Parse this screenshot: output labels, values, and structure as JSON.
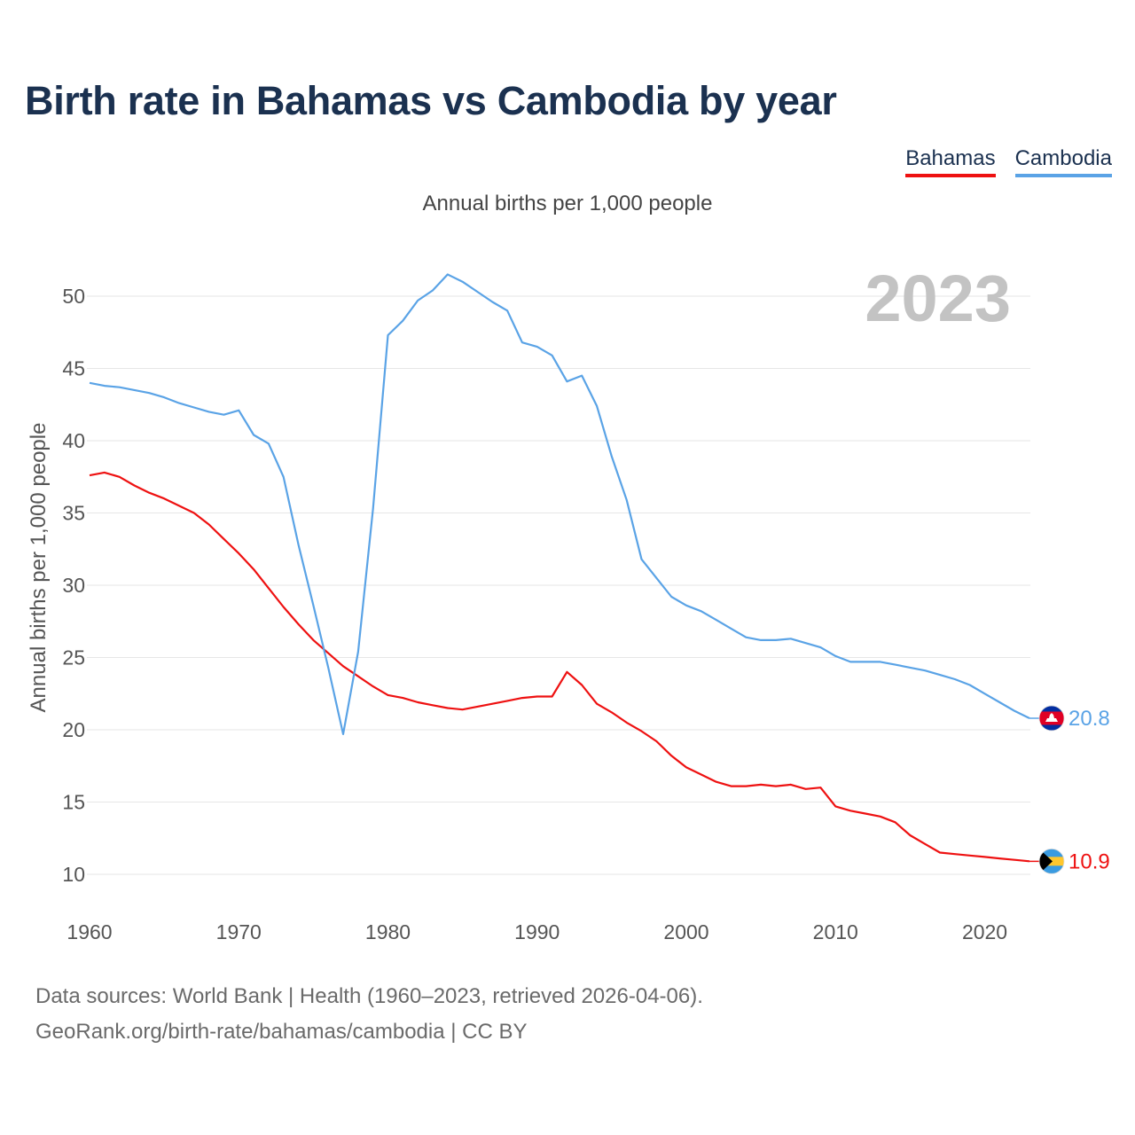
{
  "title": "Birth rate in Bahamas vs Cambodia by year",
  "subtitle": "Annual births per 1,000 people",
  "legend": {
    "bahamas": "Bahamas",
    "cambodia": "Cambodia"
  },
  "year_overlay": "2023",
  "footer": {
    "line1": "Data sources: World Bank | Health (1960–2023, retrieved 2026-04-06).",
    "line2": "GeoRank.org/birth-rate/bahamas/cambodia | CC BY"
  },
  "colors": {
    "bahamas": "#ee1111",
    "cambodia": "#5aa3e6",
    "title": "#1b3150"
  },
  "chart_data": {
    "type": "line",
    "title": "Birth rate in Bahamas vs Cambodia by year",
    "xlabel": "",
    "ylabel": "Annual births per 1,000 people",
    "xlim": [
      1960,
      2023
    ],
    "ylim": [
      10,
      52
    ],
    "x_ticks": [
      1960,
      1970,
      1980,
      1990,
      2000,
      2010,
      2020
    ],
    "y_ticks": [
      10,
      15,
      20,
      25,
      30,
      35,
      40,
      45,
      50
    ],
    "grid": true,
    "legend_position": "top-right",
    "x": [
      1960,
      1961,
      1962,
      1963,
      1964,
      1965,
      1966,
      1967,
      1968,
      1969,
      1970,
      1971,
      1972,
      1973,
      1974,
      1975,
      1976,
      1977,
      1978,
      1979,
      1980,
      1981,
      1982,
      1983,
      1984,
      1985,
      1986,
      1987,
      1988,
      1989,
      1990,
      1991,
      1992,
      1993,
      1994,
      1995,
      1996,
      1997,
      1998,
      1999,
      2000,
      2001,
      2002,
      2003,
      2004,
      2005,
      2006,
      2007,
      2008,
      2009,
      2010,
      2011,
      2012,
      2013,
      2014,
      2015,
      2016,
      2017,
      2018,
      2019,
      2020,
      2021,
      2022,
      2023
    ],
    "series": [
      {
        "name": "Bahamas",
        "end_label": "10.9",
        "values": [
          37.6,
          37.8,
          37.5,
          36.9,
          36.4,
          36.0,
          35.5,
          35.0,
          34.2,
          33.2,
          32.2,
          31.1,
          29.8,
          28.5,
          27.3,
          26.2,
          25.3,
          24.4,
          23.7,
          23.0,
          22.4,
          22.2,
          21.9,
          21.7,
          21.5,
          21.4,
          21.6,
          21.8,
          22.0,
          22.2,
          22.3,
          22.3,
          24.0,
          23.1,
          21.8,
          21.2,
          20.5,
          19.9,
          19.2,
          18.2,
          17.4,
          16.9,
          16.4,
          16.1,
          16.1,
          16.2,
          16.1,
          16.2,
          15.9,
          16.0,
          14.7,
          14.4,
          14.2,
          14.0,
          13.6,
          12.7,
          12.1,
          11.5,
          11.4,
          11.3,
          11.2,
          11.1,
          11.0,
          10.9
        ]
      },
      {
        "name": "Cambodia",
        "end_label": "20.8",
        "values": [
          44.0,
          43.8,
          43.7,
          43.5,
          43.3,
          43.0,
          42.6,
          42.3,
          42.0,
          41.8,
          42.1,
          40.4,
          39.8,
          37.5,
          32.8,
          28.6,
          24.3,
          19.7,
          25.4,
          35.3,
          47.3,
          48.3,
          49.7,
          50.4,
          51.5,
          51.0,
          50.3,
          49.6,
          49.0,
          46.8,
          46.5,
          45.9,
          44.1,
          44.5,
          42.4,
          38.9,
          35.9,
          31.8,
          30.5,
          29.2,
          28.6,
          28.2,
          27.6,
          27.0,
          26.4,
          26.2,
          26.2,
          26.3,
          26.0,
          25.7,
          25.1,
          24.7,
          24.7,
          24.7,
          24.5,
          24.3,
          24.1,
          23.8,
          23.5,
          23.1,
          22.5,
          21.9,
          21.3,
          20.8
        ]
      }
    ]
  }
}
